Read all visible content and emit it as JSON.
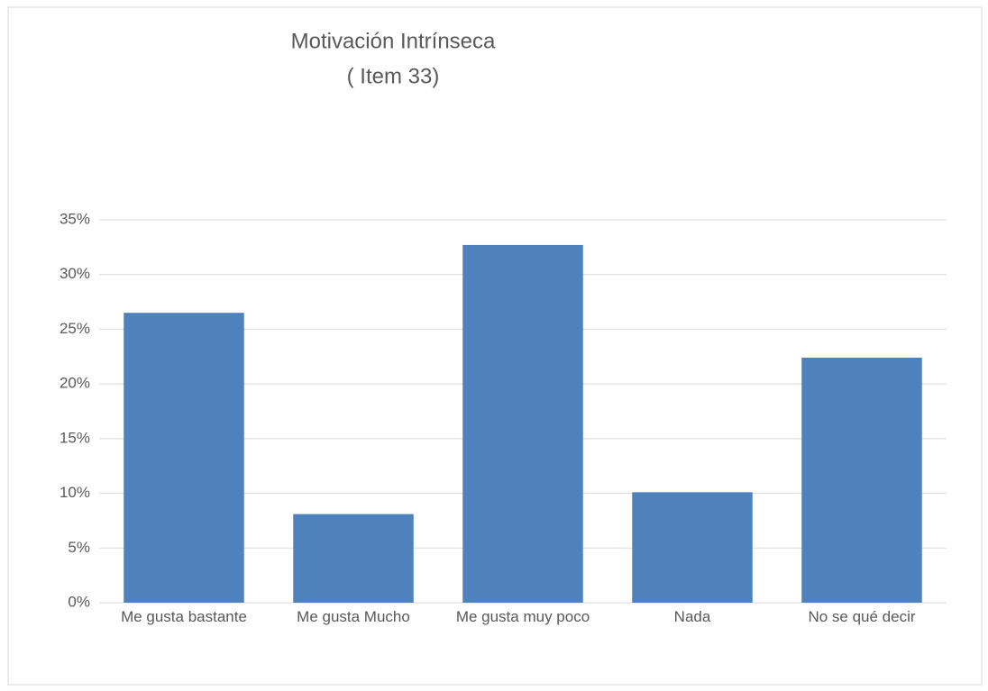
{
  "chart_data": {
    "type": "bar",
    "title": "Motivación Intrínseca",
    "subtitle": "( Item 33)",
    "categories": [
      "Me gusta bastante",
      "Me gusta Mucho",
      "Me gusta muy poco",
      "Nada",
      "No se qué decir"
    ],
    "values": [
      26.5,
      8.1,
      32.7,
      10.1,
      22.4
    ],
    "color": "#4f81bd",
    "ylim": [
      0,
      35
    ],
    "yticks": [
      {
        "value": 0,
        "label": "0%"
      },
      {
        "value": 5,
        "label": "5%"
      },
      {
        "value": 10,
        "label": "10%"
      },
      {
        "value": 15,
        "label": "15%"
      },
      {
        "value": 20,
        "label": "20%"
      },
      {
        "value": 25,
        "label": "25%"
      },
      {
        "value": 30,
        "label": "30%"
      },
      {
        "value": 35,
        "label": "35%"
      }
    ],
    "grid": true
  }
}
